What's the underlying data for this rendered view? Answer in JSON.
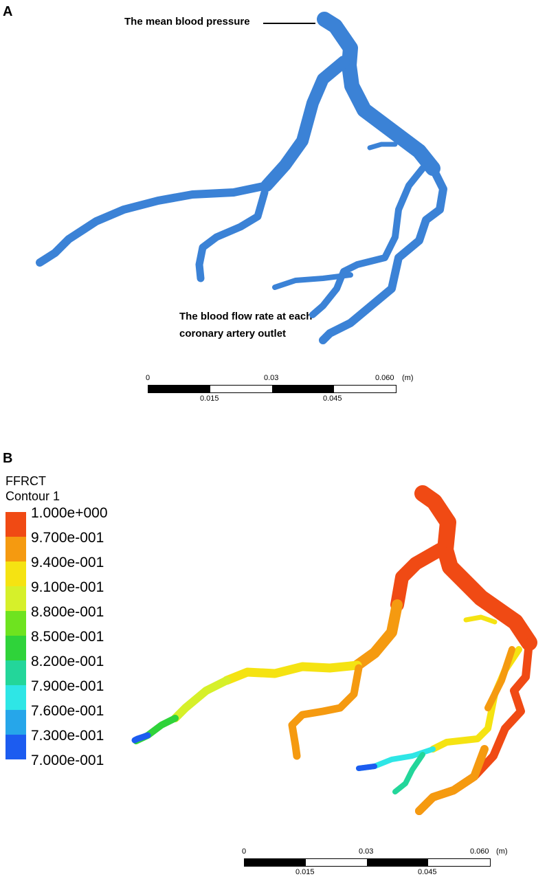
{
  "panel_a": {
    "letter": "A",
    "annotation_pressure": "The mean blood pressure",
    "annotation_flow_line1": "The blood flow rate at each",
    "annotation_flow_line2": "coronary artery outlet",
    "vessel_color": "#3b82d6",
    "scale_bar": {
      "ticks_top": [
        "0",
        "0.03",
        "0.060"
      ],
      "unit": "(m)",
      "ticks_bottom": [
        "0.015",
        "0.045"
      ]
    }
  },
  "panel_b": {
    "letter": "B",
    "legend_title": "FFRCT",
    "legend_subtitle": "Contour 1",
    "legend_labels": [
      "1.000e+000",
      "9.700e-001",
      "9.400e-001",
      "9.100e-001",
      "8.800e-001",
      "8.500e-001",
      "8.200e-001",
      "7.900e-001",
      "7.600e-001",
      "7.300e-001",
      "7.000e-001"
    ],
    "legend_colors": [
      "#f04a14",
      "#f59a10",
      "#f5e312",
      "#d6f02a",
      "#6ee31f",
      "#2fd33a",
      "#23d69a",
      "#2ee6e6",
      "#26a6ea",
      "#1c5cf0"
    ],
    "scale_bar": {
      "ticks_top": [
        "0",
        "0.03",
        "0.060"
      ],
      "unit": "(m)",
      "ticks_bottom": [
        "0.015",
        "0.045"
      ]
    }
  }
}
